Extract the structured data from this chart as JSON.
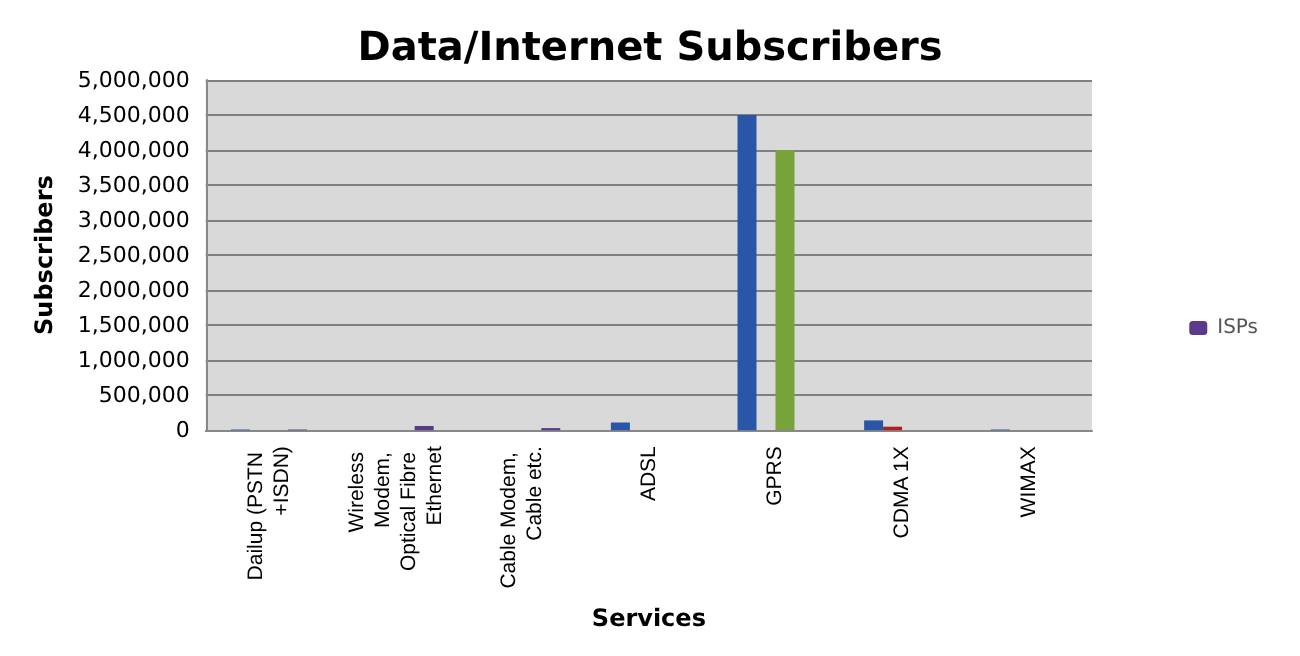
{
  "chart_data": {
    "type": "bar",
    "title": "Data/Internet Subscribers",
    "xlabel": "Services",
    "ylabel": "Subscribers",
    "categories": [
      "Dailup (PSTN +ISDN)",
      "Wireless Modem, Optical Fibre Ethernet",
      "Cable Modem, Cable etc.",
      "ADSL",
      "GPRS",
      "CDMA 1X",
      "WIMAX"
    ],
    "series": [
      {
        "color": "#2a56a8",
        "values": [
          10000,
          null,
          null,
          110000,
          4500000,
          140000,
          10000
        ]
      },
      {
        "color": "#b02020",
        "values": [
          null,
          null,
          null,
          null,
          null,
          50000,
          null
        ]
      },
      {
        "color": "#77a33a",
        "values": [
          null,
          null,
          null,
          null,
          4000000,
          null,
          null
        ]
      },
      {
        "name": "ISPs",
        "color": "#5a3a8a",
        "values": [
          10000,
          60000,
          30000,
          null,
          null,
          null,
          null
        ]
      }
    ],
    "ylim": [
      0,
      5000000
    ],
    "yticks": [
      0,
      {
        "value": 500000,
        "label": "500,000"
      },
      {
        "value": 1000000,
        "label": "1,000,000"
      },
      {
        "value": 1500000,
        "label": "1,500,000"
      },
      {
        "value": 2000000,
        "label": "2,000,000"
      },
      {
        "value": 2500000,
        "label": "2,500,000"
      },
      {
        "value": 3000000,
        "label": "3,000,000"
      },
      {
        "value": 3500000,
        "label": "3,500,000"
      },
      {
        "value": 4000000,
        "label": "4,000,000"
      },
      {
        "value": 4500000,
        "label": "4,500,000"
      },
      {
        "value": 5000000,
        "label": "5,000,000"
      }
    ],
    "grid": "y",
    "legend": "right"
  }
}
